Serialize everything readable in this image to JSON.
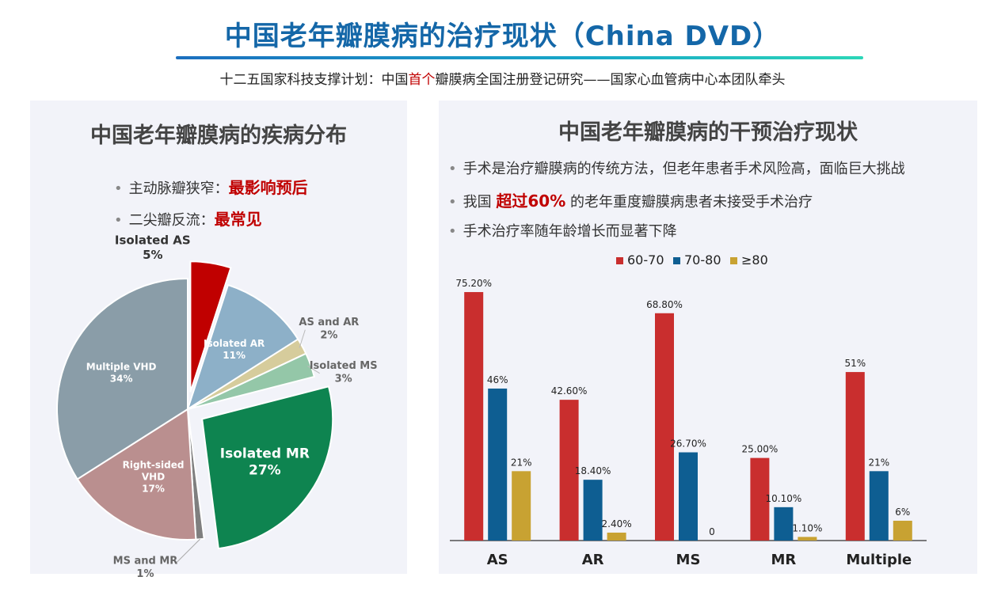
{
  "header": {
    "title": "中国老年瓣膜病的治疗现状（China DVD）",
    "subtitle_pre": "十二五国家科技支撑计划：中国",
    "subtitle_hl": "首个",
    "subtitle_post": "瓣膜病全国注册登记研究——国家心血管病中心本团队牵头"
  },
  "left": {
    "title": "中国老年瓣膜病的疾病分布",
    "bullets": [
      {
        "text": "主动脉瓣狭窄：",
        "hl": "最影响预后"
      },
      {
        "text": "二尖瓣反流：",
        "hl": "最常见"
      }
    ]
  },
  "right": {
    "title": "中国老年瓣膜病的干预治疗现状",
    "bullets": [
      {
        "pre": "手术是治疗瓣膜病的传统方法，但老年患者手术风险高，面临巨大挑战",
        "hl": "",
        "post": ""
      },
      {
        "pre": "我国 ",
        "hl": "超过60%",
        "post": " 的老年重度瓣膜病患者未接受手术治疗"
      },
      {
        "pre": "手术治疗率随年龄增长而显著下降",
        "hl": "",
        "post": ""
      }
    ]
  },
  "colors": {
    "red": "#c92e2e",
    "blue": "#0e5e92",
    "gold": "#c8a232"
  },
  "chart_data": [
    {
      "type": "pie",
      "title": "中国老年瓣膜病的疾病分布",
      "slices": [
        {
          "name": "Isolated AS",
          "value": 5,
          "label": "5%",
          "color": "#c00000",
          "exploded": true
        },
        {
          "name": "Isolated AR",
          "value": 11,
          "label": "11%",
          "color": "#8db0c8"
        },
        {
          "name": "AS and AR",
          "value": 2,
          "label": "2%",
          "color": "#d6cc9c"
        },
        {
          "name": "Isolated MS",
          "value": 3,
          "label": "3%",
          "color": "#94c7a8"
        },
        {
          "name": "Isolated MR",
          "value": 27,
          "label": "27%",
          "color": "#0e8450",
          "exploded": true
        },
        {
          "name": "MS and MR",
          "value": 1,
          "label": "1%",
          "color": "#7f7f7f"
        },
        {
          "name": "Right-sided VHD",
          "value": 17,
          "label": "17%",
          "color": "#ba8f8f"
        },
        {
          "name": "Multiple VHD",
          "value": 34,
          "label": "34%",
          "color": "#8a9da8"
        }
      ]
    },
    {
      "type": "bar",
      "categories": [
        "AS",
        "AR",
        "MS",
        "MR",
        "Multiple"
      ],
      "series": [
        {
          "name": "60-70",
          "values": [
            75.2,
            42.6,
            68.8,
            25.0,
            51
          ],
          "labels": [
            "75.20%",
            "42.60%",
            "68.80%",
            "25.00%",
            "51%"
          ]
        },
        {
          "name": "70-80",
          "values": [
            46,
            18.4,
            26.7,
            10.1,
            21
          ],
          "labels": [
            "46%",
            "18.40%",
            "26.70%",
            "10.10%",
            "21%"
          ]
        },
        {
          "name": "≥80",
          "values": [
            21,
            2.4,
            0,
            1.1,
            6
          ],
          "labels": [
            "21%",
            "2.40%",
            "0",
            "1.10%",
            "6%"
          ]
        }
      ],
      "ylim": [
        0,
        80
      ],
      "legend": "top-center"
    }
  ]
}
